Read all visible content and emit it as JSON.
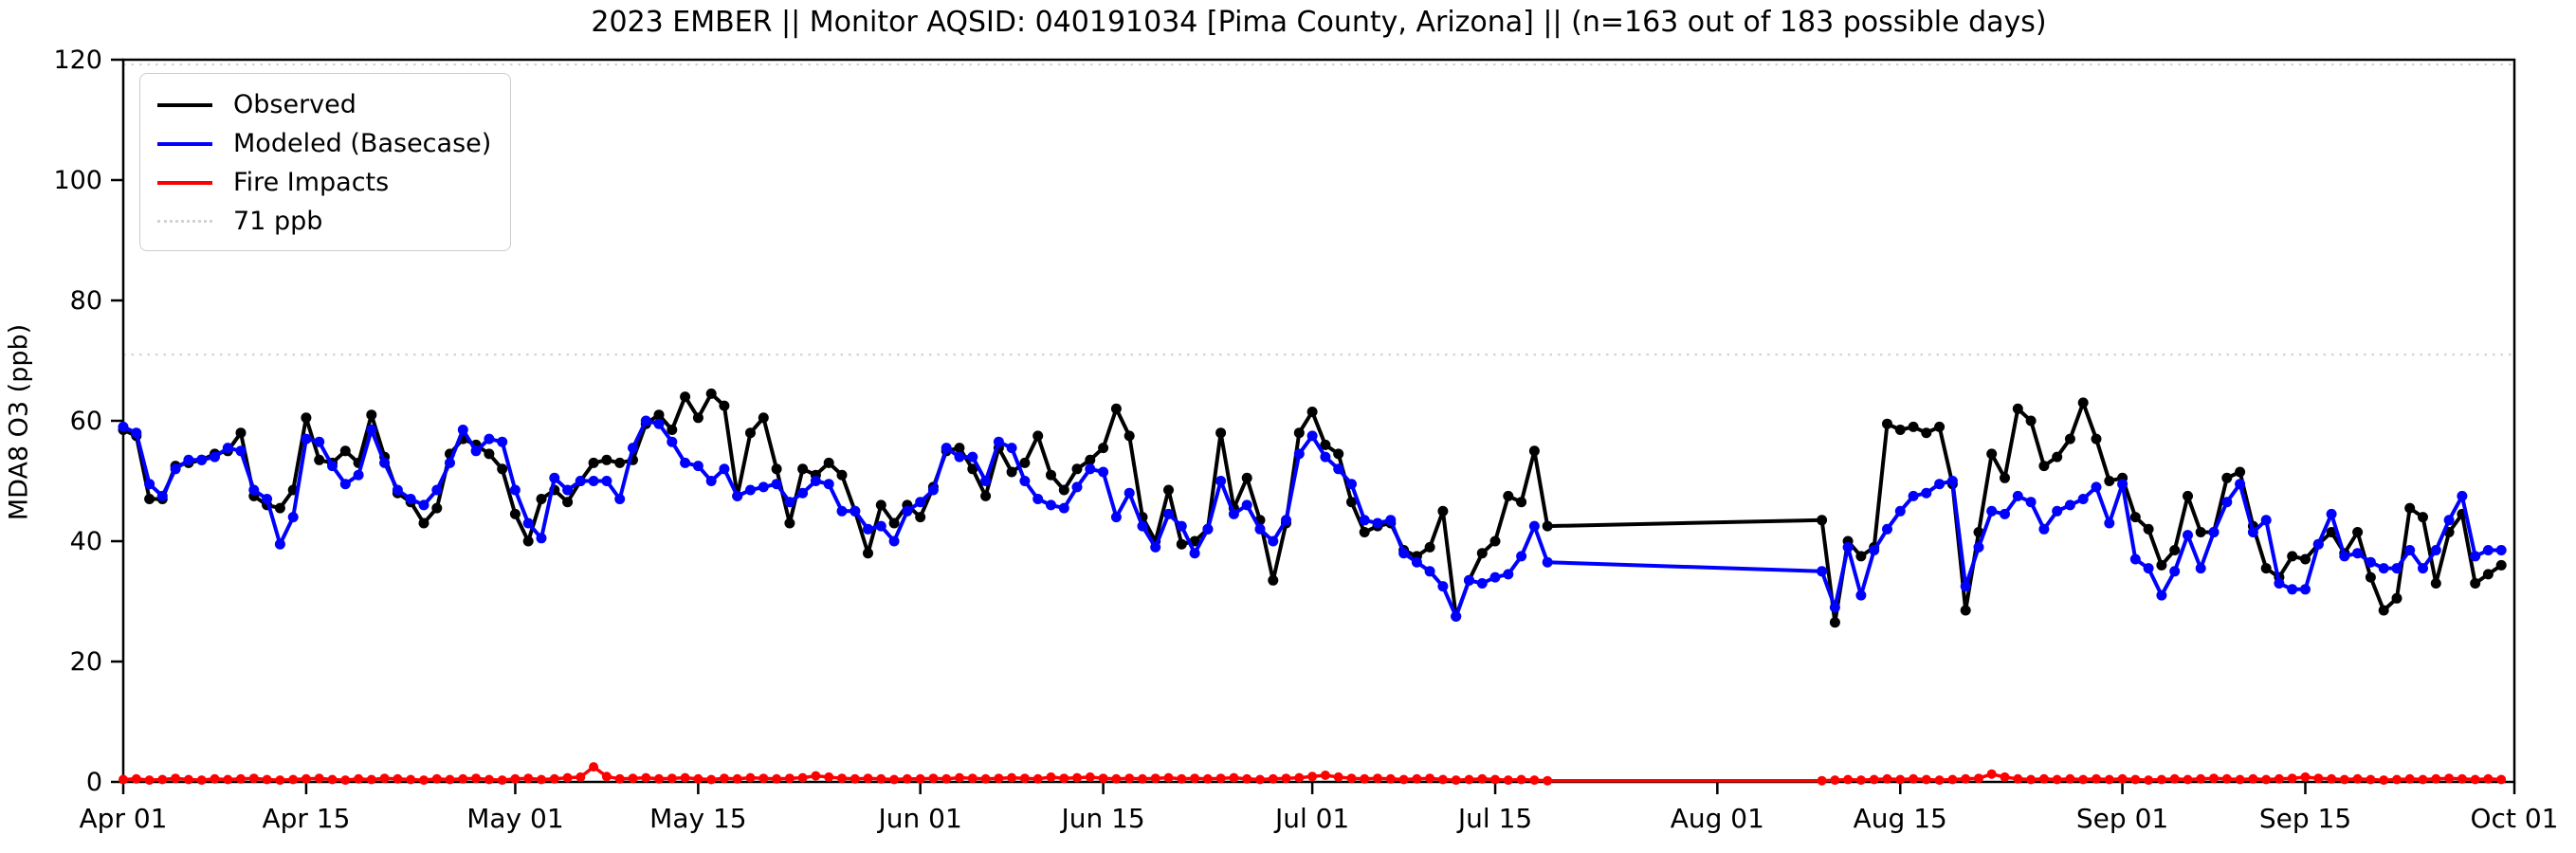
{
  "title": "2023 EMBER || Monitor AQSID: 040191034 [Pima County, Arizona] || (n=163 out of 183 possible days)",
  "ylabel": "MDA8 O3 (ppb)",
  "legend": {
    "items": [
      {
        "label": "Observed",
        "color": "#000000",
        "style": "solid"
      },
      {
        "label": "Modeled (Basecase)",
        "color": "#0000ff",
        "style": "solid"
      },
      {
        "label": "Fire Impacts",
        "color": "#ff0000",
        "style": "solid"
      },
      {
        "label": "71 ppb",
        "color": "#d3d3d3",
        "style": "dotted"
      }
    ]
  },
  "chart_data": {
    "type": "line",
    "title": "2023 EMBER || Monitor AQSID: 040191034 [Pima County, Arizona] || (n=163 out of 183 possible days)",
    "xlabel": "",
    "ylabel": "MDA8 O3 (ppb)",
    "ylim": [
      0,
      120
    ],
    "yticks": [
      0,
      20,
      40,
      60,
      80,
      100,
      120
    ],
    "x_total_days": 183,
    "x_start": "Apr 01",
    "x_end": "Oct 01",
    "xtick_labels": [
      "Apr 01",
      "Apr 15",
      "May 01",
      "May 15",
      "Jun 01",
      "Jun 15",
      "Jul 01",
      "Jul 15",
      "Aug 01",
      "Aug 15",
      "Sep 01",
      "Sep 15",
      "Oct 01"
    ],
    "xtick_days": [
      0,
      14,
      30,
      44,
      61,
      75,
      91,
      105,
      122,
      136,
      153,
      167,
      183
    ],
    "grid": false,
    "legend_position": "upper left",
    "reference_lines": [
      {
        "value": 71,
        "label": "71 ppb",
        "color": "#d3d3d3",
        "style": "dotted"
      },
      {
        "value": 119.2,
        "label": "",
        "color": "#d3d3d3",
        "style": "dotted"
      }
    ],
    "series": [
      {
        "name": "Observed",
        "color": "#000000",
        "marker": "circle",
        "values": [
          58.5,
          57.5,
          47,
          47,
          52.5,
          53,
          53.5,
          54.5,
          55,
          58,
          47.5,
          46,
          45.5,
          48.5,
          60.5,
          53.5,
          53,
          55,
          53,
          61,
          54,
          48,
          46.5,
          43,
          45.5,
          54.5,
          57,
          56,
          54.5,
          52,
          44.5,
          40,
          47,
          48.5,
          46.5,
          50,
          53,
          53.5,
          53,
          53.5,
          59.5,
          61,
          58.5,
          64,
          60.5,
          64.5,
          62.5,
          47.5,
          58,
          60.5,
          52,
          43,
          52,
          51,
          53,
          51,
          45,
          38,
          46,
          43,
          46,
          44,
          49,
          55,
          55.5,
          52,
          47.5,
          55.5,
          51.5,
          53,
          57.5,
          51,
          48.5,
          52,
          53.5,
          55.5,
          62,
          57.5,
          44,
          40,
          48.5,
          39.5,
          40,
          42,
          58,
          45.5,
          50.5,
          43.5,
          33.5,
          43,
          58,
          61.5,
          56,
          54.5,
          46.5,
          41.5,
          42.5,
          43,
          38.5,
          37.5,
          39,
          45,
          27.5,
          33.5,
          38,
          40,
          47.5,
          46.5,
          55,
          42.5,
          null,
          null,
          null,
          null,
          null,
          null,
          null,
          null,
          null,
          null,
          null,
          null,
          null,
          null,
          null,
          null,
          null,
          null,
          null,
          null,
          43.5,
          26.5,
          40,
          37.5,
          39,
          59.5,
          58.5,
          59,
          58,
          59,
          49.5,
          28.5,
          41.5,
          54.5,
          50.5,
          62,
          60,
          52.5,
          54,
          57,
          63,
          57,
          50,
          50.5,
          44,
          42,
          36,
          38.5,
          47.5,
          41.5,
          41.5,
          50.5,
          51.5,
          42.5,
          35.5,
          34,
          37.5,
          37,
          39.5,
          41.5,
          38,
          41.5,
          34,
          28.5,
          30.5,
          45.5,
          44,
          33,
          41.5,
          44.5,
          33,
          34.5,
          36
        ]
      },
      {
        "name": "Modeled (Basecase)",
        "color": "#0000ff",
        "marker": "circle",
        "values": [
          59,
          58,
          49.5,
          47.5,
          52,
          53.5,
          53.5,
          54,
          55.5,
          55,
          48.5,
          47,
          39.5,
          44,
          57,
          56.5,
          52.5,
          49.5,
          51,
          58.5,
          53,
          48.5,
          47,
          46,
          48.5,
          53,
          58.5,
          55,
          57,
          56.5,
          48.5,
          43,
          40.5,
          50.5,
          48.5,
          50,
          50,
          50,
          47,
          55.5,
          60,
          59.5,
          56.5,
          53,
          52.5,
          50,
          52,
          47.5,
          48.5,
          49,
          49.5,
          46.5,
          48,
          50,
          49.5,
          45,
          45,
          42,
          42.5,
          40,
          45,
          46.5,
          48.5,
          55.5,
          54,
          54,
          50,
          56.5,
          55.5,
          50,
          47,
          46,
          45.5,
          49,
          52,
          51.5,
          44,
          48,
          42.5,
          39,
          44.5,
          42.5,
          38,
          42,
          50,
          44.5,
          46,
          42,
          40,
          43.5,
          54.5,
          57.5,
          54,
          52,
          49.5,
          43.5,
          43,
          43.5,
          38,
          36.5,
          35,
          32.5,
          27.5,
          33.5,
          33,
          34,
          34.5,
          37.5,
          42.5,
          36.5,
          null,
          null,
          null,
          null,
          null,
          null,
          null,
          null,
          null,
          null,
          null,
          null,
          null,
          null,
          null,
          null,
          null,
          null,
          null,
          null,
          35,
          29,
          39,
          31,
          38.5,
          42,
          45,
          47.5,
          48,
          49.5,
          50,
          32.5,
          39,
          45,
          44.5,
          47.5,
          46.5,
          42,
          45,
          46,
          47,
          49,
          43,
          49.5,
          37,
          35.5,
          31,
          35,
          41,
          35.5,
          41.5,
          46.5,
          49.5,
          41.5,
          43.5,
          33,
          32,
          32,
          39.5,
          44.5,
          37.5,
          38,
          36.5,
          35.5,
          35.5,
          38.5,
          35.5,
          38.5,
          43.5,
          47.5,
          37.5,
          38.5,
          38.5
        ]
      },
      {
        "name": "Fire Impacts",
        "color": "#ff0000",
        "marker": "circle",
        "values": [
          0.4,
          0.5,
          0.3,
          0.4,
          0.6,
          0.4,
          0.3,
          0.5,
          0.4,
          0.5,
          0.6,
          0.4,
          0.3,
          0.4,
          0.5,
          0.6,
          0.4,
          0.3,
          0.5,
          0.4,
          0.6,
          0.5,
          0.4,
          0.3,
          0.5,
          0.4,
          0.5,
          0.6,
          0.4,
          0.3,
          0.5,
          0.6,
          0.4,
          0.5,
          0.7,
          0.8,
          2.5,
          0.9,
          0.5,
          0.6,
          0.7,
          0.5,
          0.6,
          0.7,
          0.5,
          0.4,
          0.6,
          0.5,
          0.7,
          0.6,
          0.5,
          0.6,
          0.7,
          1.0,
          0.8,
          0.6,
          0.5,
          0.6,
          0.5,
          0.4,
          0.5,
          0.5,
          0.6,
          0.5,
          0.7,
          0.6,
          0.5,
          0.6,
          0.7,
          0.6,
          0.5,
          0.8,
          0.6,
          0.7,
          0.8,
          0.6,
          0.5,
          0.6,
          0.5,
          0.6,
          0.7,
          0.5,
          0.6,
          0.5,
          0.6,
          0.7,
          0.5,
          0.4,
          0.5,
          0.6,
          0.7,
          0.9,
          1.1,
          0.8,
          0.6,
          0.5,
          0.6,
          0.5,
          0.4,
          0.5,
          0.6,
          0.4,
          0.3,
          0.4,
          0.5,
          0.4,
          0.3,
          0.4,
          0.3,
          0.2,
          null,
          null,
          null,
          null,
          null,
          null,
          null,
          null,
          null,
          null,
          null,
          null,
          null,
          null,
          null,
          null,
          null,
          null,
          null,
          null,
          0.2,
          0.3,
          0.4,
          0.3,
          0.4,
          0.5,
          0.4,
          0.5,
          0.4,
          0.3,
          0.4,
          0.5,
          0.6,
          1.3,
          0.8,
          0.5,
          0.4,
          0.5,
          0.4,
          0.5,
          0.4,
          0.5,
          0.4,
          0.5,
          0.4,
          0.3,
          0.4,
          0.5,
          0.4,
          0.5,
          0.6,
          0.5,
          0.4,
          0.5,
          0.4,
          0.5,
          0.6,
          0.8,
          0.6,
          0.5,
          0.4,
          0.5,
          0.4,
          0.3,
          0.4,
          0.5,
          0.4,
          0.5,
          0.6,
          0.5,
          0.4,
          0.5,
          0.4
        ]
      }
    ]
  }
}
